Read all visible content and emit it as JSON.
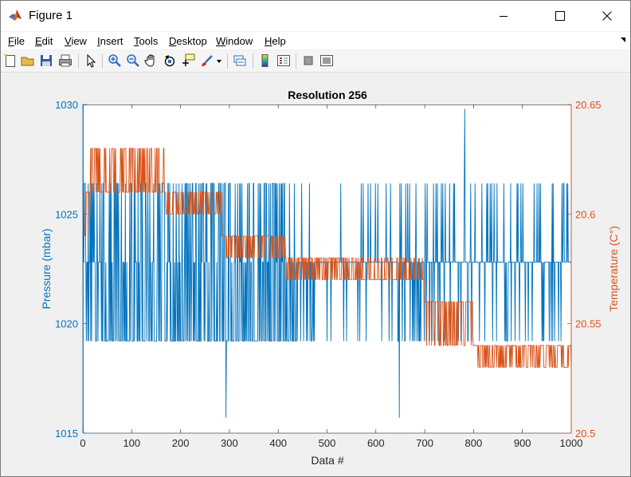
{
  "window": {
    "title": "Figure 1"
  },
  "menu": {
    "file": "File",
    "edit": "Edit",
    "view": "View",
    "insert": "Insert",
    "tools": "Tools",
    "desktop": "Desktop",
    "window": "Window",
    "help": "Help"
  },
  "toolbar": {
    "icons": [
      "new-figure-icon",
      "open-file-icon",
      "save-icon",
      "print-icon",
      "edit-plot-arrow-icon",
      "zoom-in-icon",
      "zoom-out-icon",
      "pan-hand-icon",
      "rotate-3d-icon",
      "data-cursor-icon",
      "brush-icon",
      "link-plot-icon",
      "insert-colorbar-icon",
      "insert-legend-icon",
      "hide-plot-tools-icon",
      "show-plot-tools-icon"
    ]
  },
  "colors": {
    "pressure": "#0072BD",
    "temperature": "#D95319",
    "axes": "#262626"
  },
  "chart_data": {
    "type": "line",
    "title": "Resolution 256",
    "xlabel": "Data #",
    "xlim": [
      0,
      1000
    ],
    "x_ticks": [
      "0",
      "100",
      "200",
      "300",
      "400",
      "500",
      "600",
      "700",
      "800",
      "900",
      "1000"
    ],
    "left_axis": {
      "label": "Pressure (mbar)",
      "ylim": [
        1015,
        1030
      ],
      "ticks": [
        "1015",
        "1020",
        "1025",
        "1030"
      ]
    },
    "right_axis": {
      "label": "Temperature (C°)",
      "ylim": [
        20.5,
        20.65
      ],
      "ticks": [
        "20.5",
        "20.55",
        "20.6",
        "20.65"
      ]
    },
    "series": [
      {
        "axis": "left",
        "levels": [
          1019.2,
          1022.8,
          1026.4
        ],
        "segments": [
          {
            "x0": 0,
            "x1": 110,
            "base": 1022.8,
            "high": 1026.4,
            "low": 1019.2,
            "rate_high": 0.25,
            "rate_low": 0.45
          },
          {
            "x0": 110,
            "x1": 440,
            "base": 1022.8,
            "high": 1026.4,
            "low": 1019.2,
            "rate_high": 0.3,
            "rate_low": 0.5
          },
          {
            "x0": 440,
            "x1": 560,
            "base": 1022.8,
            "high": 1026.4,
            "low": 1019.2,
            "rate_high": 0.03,
            "rate_low": 0.1
          },
          {
            "x0": 560,
            "x1": 1000,
            "base": 1022.8,
            "high": 1026.4,
            "low": 1019.2,
            "rate_high": 0.13,
            "rate_low": 0.12
          }
        ],
        "spikes": [
          {
            "x": 293,
            "y": 1015.7
          },
          {
            "x": 648,
            "y": 1015.7
          },
          {
            "x": 782,
            "y": 1029.8
          },
          {
            "x": 470,
            "y": 1019.9
          }
        ]
      },
      {
        "axis": "right",
        "segments": [
          {
            "x0": 0,
            "x1": 5,
            "base": 20.59,
            "alt": 20.59,
            "rate": 0
          },
          {
            "x0": 5,
            "x1": 15,
            "base": 20.61,
            "alt": 20.59,
            "rate": 0.4
          },
          {
            "x0": 15,
            "x1": 170,
            "base": 20.61,
            "alt": 20.63,
            "rate": 0.45
          },
          {
            "x0": 170,
            "x1": 285,
            "base": 20.6,
            "alt": 20.61,
            "rate": 0.45
          },
          {
            "x0": 285,
            "x1": 415,
            "base": 20.59,
            "alt": 20.58,
            "rate": 0.35
          },
          {
            "x0": 415,
            "x1": 540,
            "base": 20.58,
            "alt": 20.57,
            "rate": 0.5
          },
          {
            "x0": 540,
            "x1": 700,
            "base": 20.57,
            "alt": 20.58,
            "rate": 0.3
          },
          {
            "x0": 700,
            "x1": 800,
            "base": 20.56,
            "alt": 20.54,
            "rate": 0.45
          },
          {
            "x0": 800,
            "x1": 1000,
            "base": 20.54,
            "alt": 20.53,
            "rate": 0.4
          }
        ]
      }
    ]
  }
}
